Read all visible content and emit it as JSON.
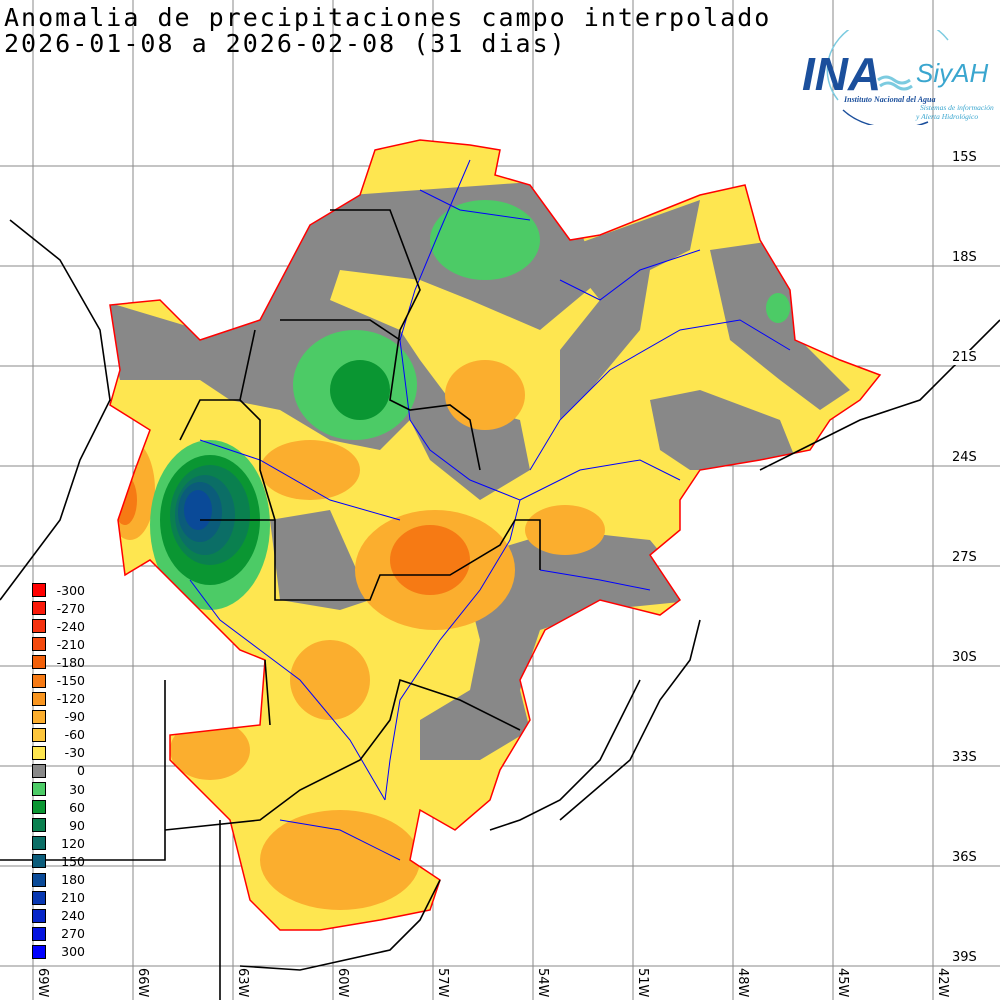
{
  "title": {
    "line1": "Anomalia de precipitaciones campo interpolado",
    "line2": "2026-01-08 a 2026-02-08 (31 dias)"
  },
  "logo": {
    "acronym": "INA",
    "org": "Instituto Nacional del Agua",
    "system": "SiyAH",
    "system_desc_1": "Sistemas de información",
    "system_desc_2": "y Alerta Hidrológico"
  },
  "lat_labels": [
    "15S",
    "18S",
    "21S",
    "24S",
    "27S",
    "30S",
    "33S",
    "36S",
    "39S"
  ],
  "lon_labels": [
    "69W",
    "66W",
    "63W",
    "60W",
    "57W",
    "54W",
    "51W",
    "48W",
    "45W",
    "42W"
  ],
  "legend": [
    {
      "label": "-300",
      "color": "#ff0000"
    },
    {
      "label": "-270",
      "color": "#fa1a0a"
    },
    {
      "label": "-240",
      "color": "#f53310"
    },
    {
      "label": "-210",
      "color": "#f44a0e"
    },
    {
      "label": "-180",
      "color": "#f2600a"
    },
    {
      "label": "-150",
      "color": "#f67a14"
    },
    {
      "label": "-120",
      "color": "#f8951f"
    },
    {
      "label": "-90",
      "color": "#fbae2e"
    },
    {
      "label": "-60",
      "color": "#fdc63c"
    },
    {
      "label": "-30",
      "color": "#fee650"
    },
    {
      "label": "0",
      "color": "#888888"
    },
    {
      "label": "30",
      "color": "#4ccb66"
    },
    {
      "label": "60",
      "color": "#0a9632"
    },
    {
      "label": "90",
      "color": "#0a804f"
    },
    {
      "label": "120",
      "color": "#0b6e66"
    },
    {
      "label": "150",
      "color": "#0b5c7a"
    },
    {
      "label": "180",
      "color": "#0a4a98"
    },
    {
      "label": "210",
      "color": "#0838b2"
    },
    {
      "label": "240",
      "color": "#0626c8"
    },
    {
      "label": "270",
      "color": "#0414e0"
    },
    {
      "label": "300",
      "color": "#0000ff"
    }
  ],
  "colors": {
    "grid": "#888888",
    "outline": "#ff0000",
    "river": "#0000ff",
    "border": "#000000"
  }
}
